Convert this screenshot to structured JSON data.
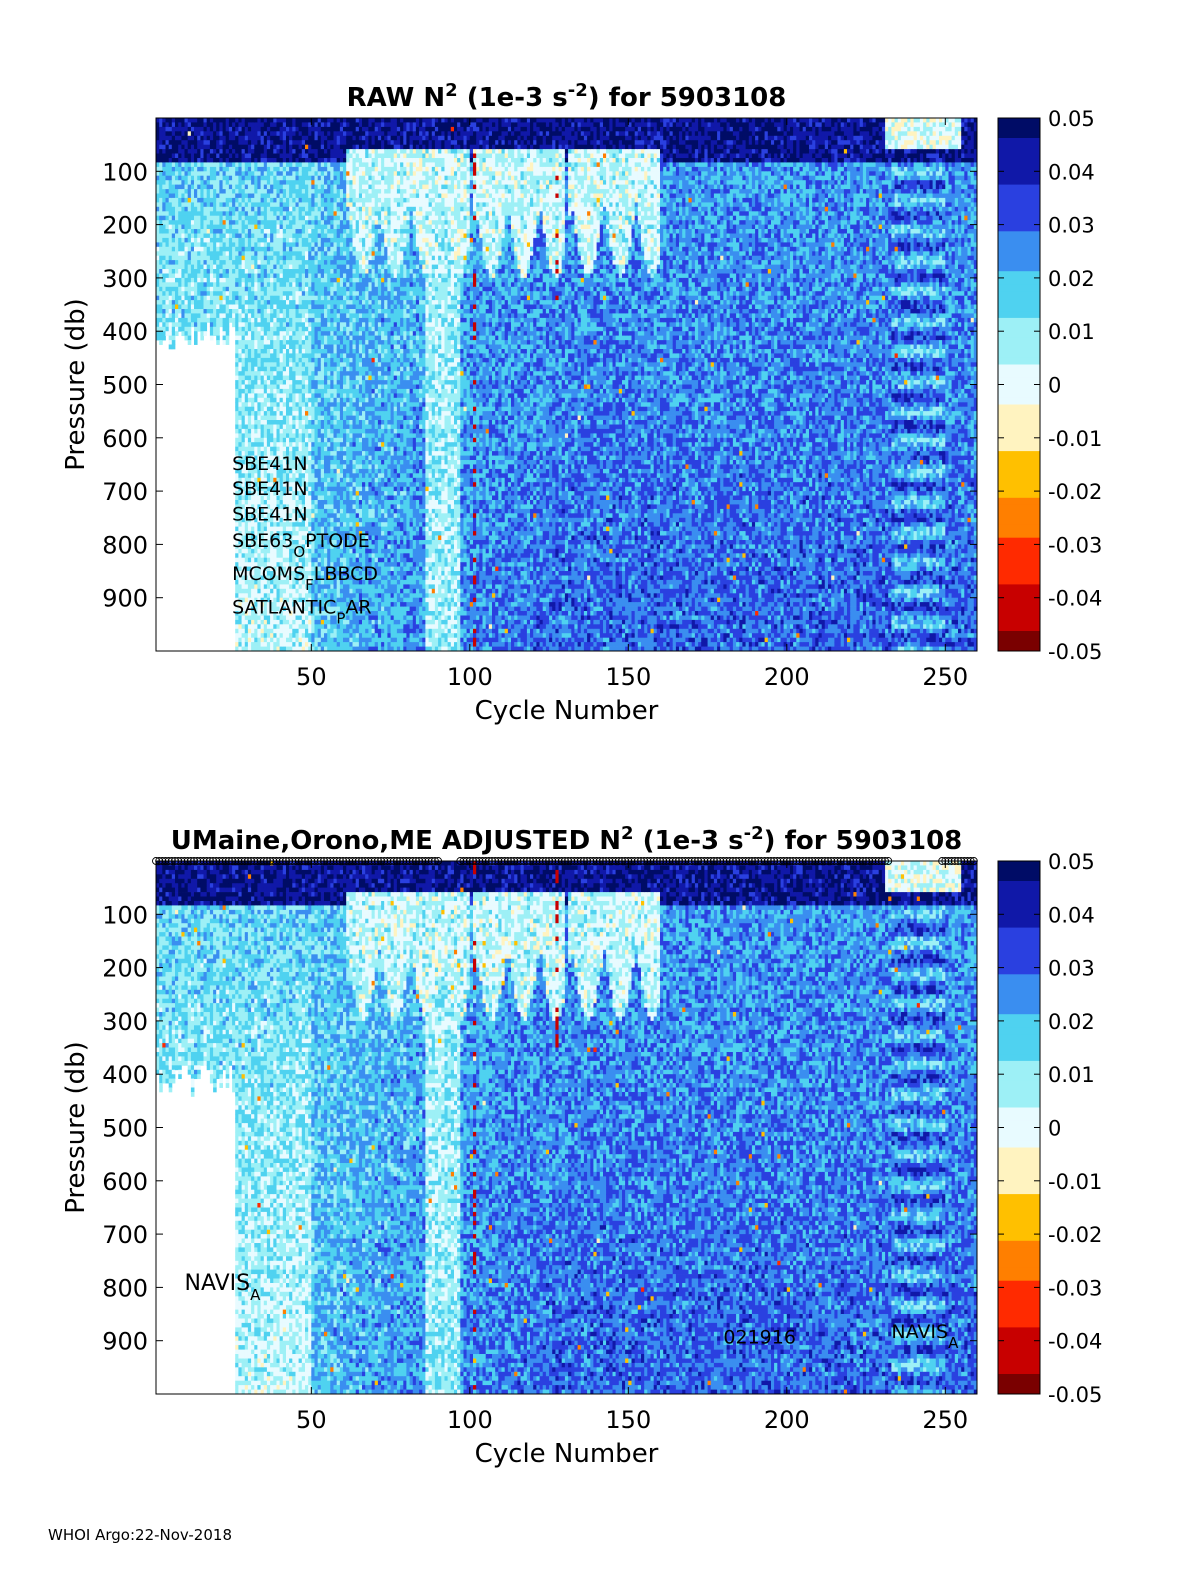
{
  "footer": "WHOI Argo:22-Nov-2018",
  "colormap": [
    "#7a0000",
    "#c80000",
    "#ff2a00",
    "#ff7f00",
    "#ffc000",
    "#fff3c0",
    "#e8fbff",
    "#9df0f6",
    "#4fd2f0",
    "#3a8ef0",
    "#2a40e0",
    "#1018a8",
    "#000c66"
  ],
  "chart_data": [
    {
      "type": "heatmap",
      "title_parts": {
        "pre": "RAW N",
        "sup1": "2",
        "mid": " (1e-3 s",
        "sup2": "-2",
        "post": ") for 5903108"
      },
      "xlabel": "Cycle Number",
      "ylabel": "Pressure (db)",
      "xlim": [
        1,
        260
      ],
      "ylim": [
        0,
        1000
      ],
      "x_ticks": [
        "50",
        "100",
        "150",
        "200",
        "250"
      ],
      "y_ticks": [
        "100",
        "200",
        "300",
        "400",
        "500",
        "600",
        "700",
        "800",
        "900"
      ],
      "colorbar": {
        "clim": [
          -0.05,
          0.05
        ],
        "ticks": [
          "0.05",
          "0.04",
          "0.03",
          "0.02",
          "0.01",
          "0",
          "-0.01",
          "-0.02",
          "-0.03",
          "-0.04",
          "-0.05"
        ]
      },
      "annotations": [
        {
          "text": "SBE41N",
          "x": 25,
          "y": 660
        },
        {
          "text": "SBE41N",
          "x": 25,
          "y": 707
        },
        {
          "text": "SBE41N",
          "x": 25,
          "y": 755
        },
        {
          "pre": "SBE63",
          "sub": "O",
          "post": "PTODE",
          "x": 25,
          "y": 805
        },
        {
          "pre": "MCOMS",
          "sub": "F",
          "post": "LBBCD",
          "x": 25,
          "y": 867
        },
        {
          "pre": "SATLANTIC",
          "sub": "P",
          "post": "AR",
          "x": 25,
          "y": 930
        }
      ]
    },
    {
      "type": "heatmap",
      "title_parts": {
        "pre": "UMaine,Orono,ME  ADJUSTED N",
        "sup1": "2",
        "mid": " (1e-3 s",
        "sup2": "-2",
        "post": ") for 5903108"
      },
      "xlabel": "Cycle Number",
      "ylabel": "Pressure (db)",
      "xlim": [
        1,
        260
      ],
      "ylim": [
        0,
        1000
      ],
      "x_ticks": [
        "50",
        "100",
        "150",
        "200",
        "250"
      ],
      "y_ticks": [
        "100",
        "200",
        "300",
        "400",
        "500",
        "600",
        "700",
        "800",
        "900"
      ],
      "colorbar": {
        "clim": [
          -0.05,
          0.05
        ],
        "ticks": [
          "0.05",
          "0.04",
          "0.03",
          "0.02",
          "0.01",
          "0",
          "-0.01",
          "-0.02",
          "-0.03",
          "-0.04",
          "-0.05"
        ]
      },
      "annotations": [
        {
          "pre": "NAVIS",
          "sub": "A",
          "post": "",
          "x": 10,
          "y": 805,
          "large": true
        },
        {
          "text": "021916",
          "x": 180,
          "y": 905
        },
        {
          "pre": "NAVIS",
          "sub": "A",
          "post": "",
          "x": 233,
          "y": 895
        }
      ]
    }
  ]
}
